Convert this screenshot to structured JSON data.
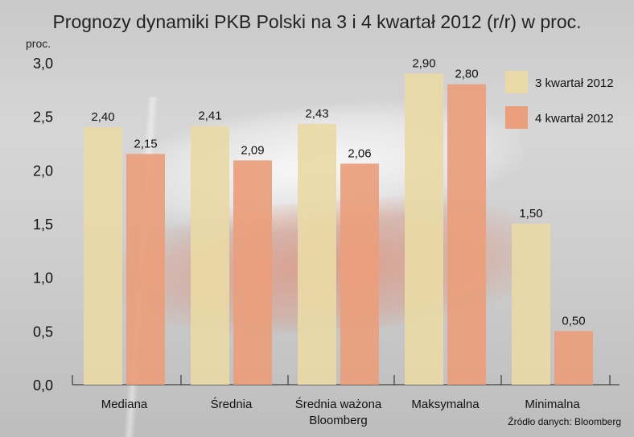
{
  "colors": {
    "series_q3": "#e9d9a6",
    "series_q4": "#ea9e7b"
  },
  "chart_data": {
    "type": "bar",
    "title": "Prognozy dynamiki PKB Polski na 3 i 4 kwartał 2012 (r/r) w proc.",
    "ylabel": "proc.",
    "ylim": [
      0,
      3.0
    ],
    "yticks": [
      "0,0",
      "0,5",
      "1,0",
      "1,5",
      "2,0",
      "2,5",
      "3,0"
    ],
    "categories": [
      "Mediana",
      "Średnia",
      "Średnia ważona\nBloomberg",
      "Maksymalna",
      "Minimalna"
    ],
    "series": [
      {
        "name": "3 kwartał 2012",
        "values": [
          2.4,
          2.41,
          2.43,
          2.9,
          1.5
        ],
        "labels": [
          "2,40",
          "2,41",
          "2,43",
          "2,90",
          "1,50"
        ]
      },
      {
        "name": "4 kwartał 2012",
        "values": [
          2.15,
          2.09,
          2.06,
          2.8,
          0.5
        ],
        "labels": [
          "2,15",
          "2,09",
          "2,06",
          "2,80",
          "0,50"
        ]
      }
    ],
    "legend_position": "top-right",
    "grid": false,
    "source": "Źródło danych: Bloomberg"
  }
}
